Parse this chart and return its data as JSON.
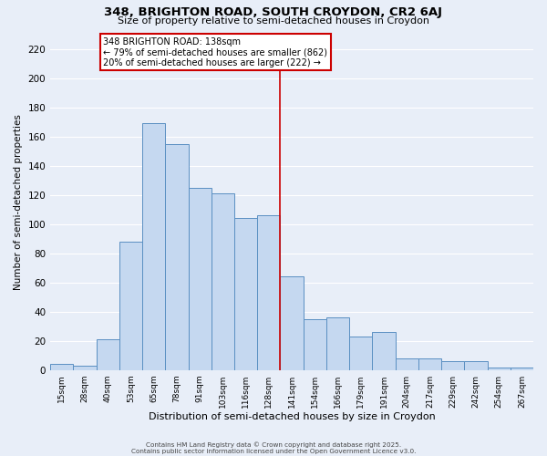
{
  "title_line1": "348, BRIGHTON ROAD, SOUTH CROYDON, CR2 6AJ",
  "title_line2": "Size of property relative to semi-detached houses in Croydon",
  "xlabel": "Distribution of semi-detached houses by size in Croydon",
  "ylabel": "Number of semi-detached properties",
  "bar_values": [
    4,
    3,
    21,
    88,
    169,
    155,
    125,
    121,
    104,
    106,
    64,
    35,
    36,
    23,
    26,
    8,
    8,
    6,
    6,
    2,
    2
  ],
  "bin_labels": [
    "15sqm",
    "28sqm",
    "40sqm",
    "53sqm",
    "65sqm",
    "78sqm",
    "91sqm",
    "103sqm",
    "116sqm",
    "128sqm",
    "141sqm",
    "154sqm",
    "166sqm",
    "179sqm",
    "191sqm",
    "204sqm",
    "217sqm",
    "229sqm",
    "242sqm",
    "254sqm",
    "267sqm"
  ],
  "bar_color": "#c5d8f0",
  "bar_edge_color": "#5a8fc2",
  "background_color": "#e8eef8",
  "grid_color": "#ffffff",
  "vline_x": 9.5,
  "vline_color": "#cc0000",
  "annotation_text": "348 BRIGHTON ROAD: 138sqm\n← 79% of semi-detached houses are smaller (862)\n20% of semi-detached houses are larger (222) →",
  "annotation_box_color": "#ffffff",
  "annotation_box_edge": "#cc0000",
  "footer_line1": "Contains HM Land Registry data © Crown copyright and database right 2025.",
  "footer_line2": "Contains public sector information licensed under the Open Government Licence v3.0.",
  "ylim": [
    0,
    230
  ],
  "yticks": [
    0,
    20,
    40,
    60,
    80,
    100,
    120,
    140,
    160,
    180,
    200,
    220
  ]
}
